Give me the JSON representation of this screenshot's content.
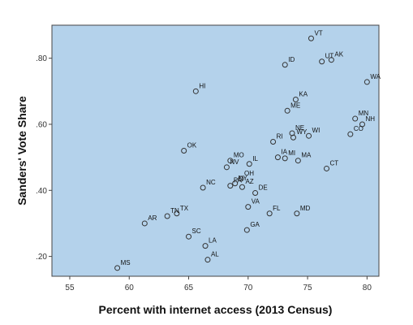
{
  "chart_data": {
    "type": "scatter",
    "title": "",
    "xlabel": "Percent with internet access (2013 Census)",
    "ylabel": "Sanders' Vote Share",
    "xlim": [
      53.5,
      81
    ],
    "ylim": [
      0.14,
      0.9
    ],
    "x_ticks": [
      55,
      60,
      65,
      70,
      75,
      80
    ],
    "x_tick_labels": [
      "55",
      "60",
      "65",
      "70",
      "75",
      "80"
    ],
    "y_ticks": [
      0.2,
      0.4,
      0.6,
      0.8
    ],
    "y_tick_labels": [
      ".20",
      ".40",
      ".60",
      ".80"
    ],
    "grid": false,
    "colors": {
      "plot_background": "#b4d2eb",
      "marker_edge": "#333333",
      "frame": "#444444"
    },
    "points": [
      {
        "label": "VT",
        "x": 75.3,
        "y": 0.86
      },
      {
        "label": "AK",
        "x": 77.0,
        "y": 0.795
      },
      {
        "label": "UT",
        "x": 76.2,
        "y": 0.79
      },
      {
        "label": "ID",
        "x": 73.1,
        "y": 0.78
      },
      {
        "label": "WA",
        "x": 80.0,
        "y": 0.728
      },
      {
        "label": "HI",
        "x": 65.6,
        "y": 0.7
      },
      {
        "label": "KA",
        "x": 74.0,
        "y": 0.675
      },
      {
        "label": "ME",
        "x": 73.3,
        "y": 0.641
      },
      {
        "label": "MN",
        "x": 79.0,
        "y": 0.617
      },
      {
        "label": "NH",
        "x": 79.6,
        "y": 0.6
      },
      {
        "label": "CO",
        "x": 78.6,
        "y": 0.57
      },
      {
        "label": "NE",
        "x": 73.7,
        "y": 0.573
      },
      {
        "label": "WI",
        "x": 75.1,
        "y": 0.565
      },
      {
        "label": "RI",
        "x": 72.1,
        "y": 0.547
      },
      {
        "label": "WY",
        "x": 73.8,
        "y": 0.56
      },
      {
        "label": "OK",
        "x": 64.6,
        "y": 0.52
      },
      {
        "label": "IA",
        "x": 72.5,
        "y": 0.5
      },
      {
        "label": "MI",
        "x": 73.1,
        "y": 0.497
      },
      {
        "label": "MA",
        "x": 74.2,
        "y": 0.49
      },
      {
        "label": "MO",
        "x": 68.5,
        "y": 0.49
      },
      {
        "label": "IL",
        "x": 70.1,
        "y": 0.48
      },
      {
        "label": "NV",
        "x": 68.2,
        "y": 0.47
      },
      {
        "label": "CT",
        "x": 76.6,
        "y": 0.466
      },
      {
        "label": "OH",
        "x": 69.4,
        "y": 0.435
      },
      {
        "label": "NY",
        "x": 68.9,
        "y": 0.421
      },
      {
        "label": "NC",
        "x": 66.2,
        "y": 0.408
      },
      {
        "label": "PA",
        "x": 68.5,
        "y": 0.414
      },
      {
        "label": "DE",
        "x": 70.6,
        "y": 0.392
      },
      {
        "label": "AZ",
        "x": 69.5,
        "y": 0.41
      },
      {
        "label": "FL",
        "x": 71.8,
        "y": 0.33
      },
      {
        "label": "MD",
        "x": 74.1,
        "y": 0.33
      },
      {
        "label": "VA",
        "x": 70.0,
        "y": 0.35
      },
      {
        "label": "GA",
        "x": 69.9,
        "y": 0.28
      },
      {
        "label": "TX",
        "x": 64.0,
        "y": 0.33
      },
      {
        "label": "AR",
        "x": 61.3,
        "y": 0.3
      },
      {
        "label": "TN",
        "x": 63.2,
        "y": 0.322
      },
      {
        "label": "SC",
        "x": 65.0,
        "y": 0.26
      },
      {
        "label": "LA",
        "x": 66.4,
        "y": 0.232
      },
      {
        "label": "AL",
        "x": 66.6,
        "y": 0.19
      },
      {
        "label": "MS",
        "x": 59.0,
        "y": 0.165
      }
    ]
  }
}
